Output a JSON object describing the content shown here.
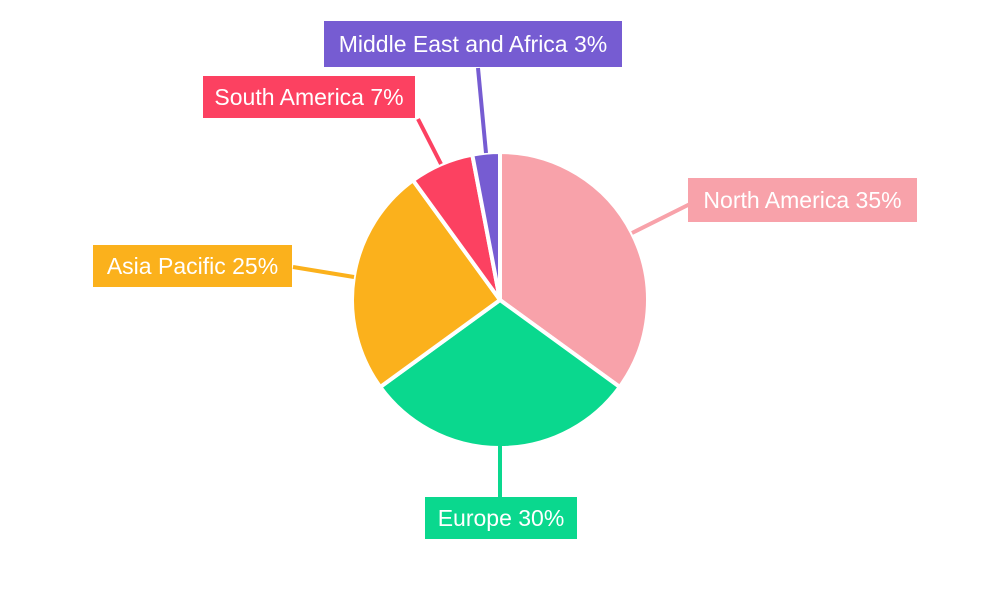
{
  "chart_data": {
    "type": "pie",
    "title": "",
    "background": "#ffffff",
    "label_text_color": "#ffffff",
    "legend": "none",
    "start_angle_deg": 0,
    "direction": "clockwise",
    "categories": [
      "North America",
      "Europe",
      "Asia Pacific",
      "South America",
      "Middle East and Africa"
    ],
    "values": [
      35,
      30,
      25,
      7,
      3
    ],
    "slices": [
      {
        "label": "North America",
        "value": 35,
        "display": "North America 35%",
        "color": "#F8A2AA"
      },
      {
        "label": "Europe",
        "value": 30,
        "display": "Europe 30%",
        "color": "#0AD88E"
      },
      {
        "label": "Asia Pacific",
        "value": 25,
        "display": "Asia Pacific 25%",
        "color": "#FBB11C"
      },
      {
        "label": "South America",
        "value": 7,
        "display": "South America 7%",
        "color": "#FC4161"
      },
      {
        "label": "Middle East and Africa",
        "value": 3,
        "display": "Middle East and Africa 3%",
        "color": "#765CD2"
      }
    ]
  }
}
